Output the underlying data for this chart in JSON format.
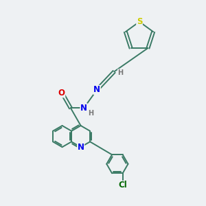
{
  "background_color": "#eef1f3",
  "bond_color": "#3a7a65",
  "atom_colors": {
    "N": "#0000ee",
    "O": "#dd0000",
    "S": "#cccc00",
    "Cl": "#006600",
    "H": "#777777",
    "C": "#3a7a65"
  },
  "figsize": [
    3.0,
    3.0
  ],
  "dpi": 100,
  "lw": 1.4,
  "fs": 8.5,
  "fs_small": 7.0
}
